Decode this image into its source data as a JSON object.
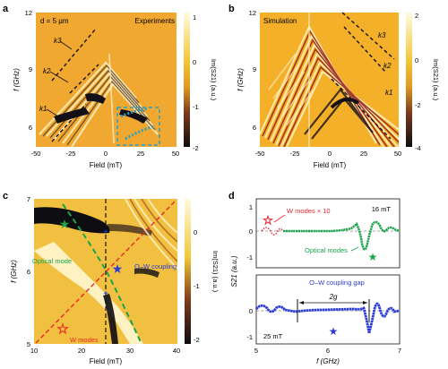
{
  "figure": {
    "panels": {
      "a": {
        "letter": "a",
        "note": "d = 5 µm",
        "tag": "Experiments",
        "xlabel": "Field (mT)",
        "ylabel": "f (GHz)",
        "xticks": [
          "-50",
          "-25",
          "0",
          "25",
          "50"
        ],
        "yticks": [
          "6",
          "9",
          "12"
        ],
        "k_labels": [
          "k3",
          "k2",
          "k1"
        ],
        "colorbar": {
          "label": "Im(S21) (a.u.)",
          "ticks": [
            "1",
            "0",
            "-1",
            "-2"
          ]
        }
      },
      "b": {
        "letter": "b",
        "tag": "Simulation",
        "xlabel": "Field (mT)",
        "ylabel": "f (GHz)",
        "xticks": [
          "-50",
          "-25",
          "0",
          "25",
          "50"
        ],
        "yticks": [
          "6",
          "9",
          "12"
        ],
        "k_labels": [
          "k3",
          "k2",
          "k1"
        ],
        "colorbar": {
          "label": "Im(S21) (a.u.)",
          "ticks": [
            "2",
            "0",
            "-2",
            "-4"
          ]
        }
      },
      "c": {
        "letter": "c",
        "xlabel": "Field (mT)",
        "ylabel": "f (GHz)",
        "xticks": [
          "10",
          "20",
          "30",
          "40"
        ],
        "yticks": [
          "5",
          "6",
          "7"
        ],
        "annotations": {
          "optical": "Optical mode",
          "coupling": "O–W coupling",
          "wmodes": "W modes"
        },
        "colorbar": {
          "label": "Im(S21) (a.u.)",
          "ticks": [
            "0",
            "-1",
            "-2"
          ]
        }
      },
      "d": {
        "letter": "d",
        "xlabel": "f (GHz)",
        "ylabel": "S21 (a.u.)",
        "xticks": [
          "5",
          "6",
          "7"
        ],
        "top": {
          "field": "16 mT",
          "wlabel": "W modes × 10",
          "olabel": "Optical modes",
          "yticks": [
            "1",
            "0",
            "-1"
          ]
        },
        "bottom": {
          "field": "25 mT",
          "gap_title": "O–W coupling gap",
          "gap": "2g",
          "yticks": [
            "0",
            "-1"
          ]
        }
      }
    },
    "colors": {
      "optical": "#1aa34a",
      "wmodes": "#e8262c",
      "coupling": "#2a3bd6",
      "cyan": "#2a9fc0",
      "dash": "#111111"
    }
  }
}
